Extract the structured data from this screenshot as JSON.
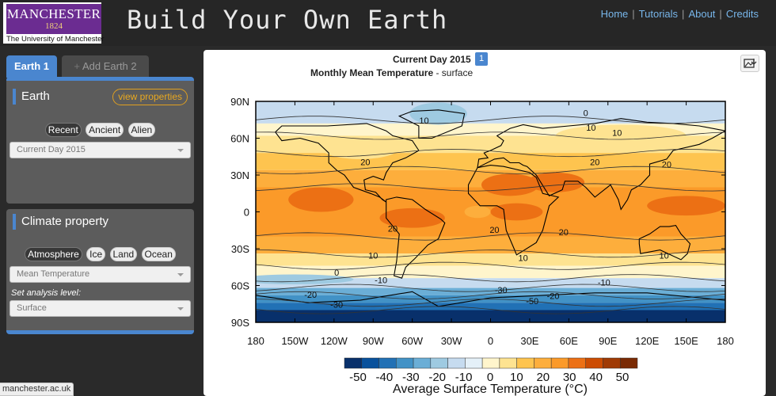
{
  "header": {
    "logo": {
      "name": "MANCHESTER",
      "year": "1824",
      "university": "The University of Manchester"
    },
    "app_title": "Build Your Own Earth",
    "nav": [
      {
        "label": "Home"
      },
      {
        "label": "Tutorials"
      },
      {
        "label": "About"
      },
      {
        "label": "Credits"
      }
    ]
  },
  "tabs": [
    {
      "label": "Earth 1",
      "active": true
    },
    {
      "label": "Add Earth 2",
      "active": false,
      "icon": "plus-icon"
    }
  ],
  "earth_panel": {
    "title": "Earth",
    "view_properties": "view properties",
    "era_buttons": [
      {
        "label": "Recent",
        "active": true
      },
      {
        "label": "Ancient",
        "active": false
      },
      {
        "label": "Alien",
        "active": false
      }
    ],
    "earth_select": "Current Day 2015"
  },
  "climate_panel": {
    "title": "Climate property",
    "sphere_buttons": [
      {
        "label": "Atmosphere",
        "active": true
      },
      {
        "label": "Ice",
        "active": false
      },
      {
        "label": "Land",
        "active": false
      },
      {
        "label": "Ocean",
        "active": false
      }
    ],
    "property_select": "Mean Temperature",
    "level_label": "Set analysis level:",
    "level_select": "Surface"
  },
  "map": {
    "title": "Current Day 2015",
    "badge": "1",
    "subtitle_bold": "Monthly Mean Temperature",
    "subtitle_rest": " - surface",
    "save_icon": "image-download-icon",
    "y_ticks": [
      "90N",
      "60N",
      "30N",
      "0",
      "30S",
      "60S",
      "90S"
    ],
    "x_ticks": [
      "180",
      "150W",
      "120W",
      "90W",
      "60W",
      "30W",
      "0",
      "30E",
      "60E",
      "90E",
      "120E",
      "150E",
      "180"
    ],
    "contour_labels": [
      {
        "text": "0",
        "lon": 73,
        "lat": 78
      },
      {
        "text": "10",
        "lon": -51,
        "lat": 72
      },
      {
        "text": "10",
        "lon": 77,
        "lat": 66
      },
      {
        "text": "10",
        "lon": 97,
        "lat": 62
      },
      {
        "text": "20",
        "lon": -96,
        "lat": 38
      },
      {
        "text": "20",
        "lon": 80,
        "lat": 38
      },
      {
        "text": "20",
        "lon": 135,
        "lat": 36
      },
      {
        "text": "20",
        "lon": -75,
        "lat": -16
      },
      {
        "text": "20",
        "lon": 3,
        "lat": -17
      },
      {
        "text": "20",
        "lon": 56,
        "lat": -19
      },
      {
        "text": "10",
        "lon": -90,
        "lat": -38
      },
      {
        "text": "10",
        "lon": 25,
        "lat": -40
      },
      {
        "text": "10",
        "lon": 133,
        "lat": -38
      },
      {
        "text": "0",
        "lon": -118,
        "lat": -52
      },
      {
        "text": "-10",
        "lon": -84,
        "lat": -58
      },
      {
        "text": "-10",
        "lon": 87,
        "lat": -60
      },
      {
        "text": "-20",
        "lon": -138,
        "lat": -70
      },
      {
        "text": "-20",
        "lon": 48,
        "lat": -71
      },
      {
        "text": "-30",
        "lon": -118,
        "lat": -78
      },
      {
        "text": "-30",
        "lon": 8,
        "lat": -66
      },
      {
        "text": "-50",
        "lon": 32,
        "lat": -75
      }
    ],
    "colorbar": {
      "ticks": [
        "-50",
        "-40",
        "-30",
        "-20",
        "-10",
        "0",
        "10",
        "20",
        "30",
        "40",
        "50"
      ],
      "colors": [
        "#08306b",
        "#08519c",
        "#2171b5",
        "#4292c6",
        "#6baed6",
        "#9ecae1",
        "#c6dbef",
        "#e4f0f8",
        "#fff5cc",
        "#fee391",
        "#fec44f",
        "#fdae3c",
        "#fb9a29",
        "#ec7014",
        "#cc4c02",
        "#a03a04",
        "#7a2a04"
      ],
      "label": "Average Surface Temperature (°C)"
    }
  },
  "status_bar": "manchester.ac.uk"
}
